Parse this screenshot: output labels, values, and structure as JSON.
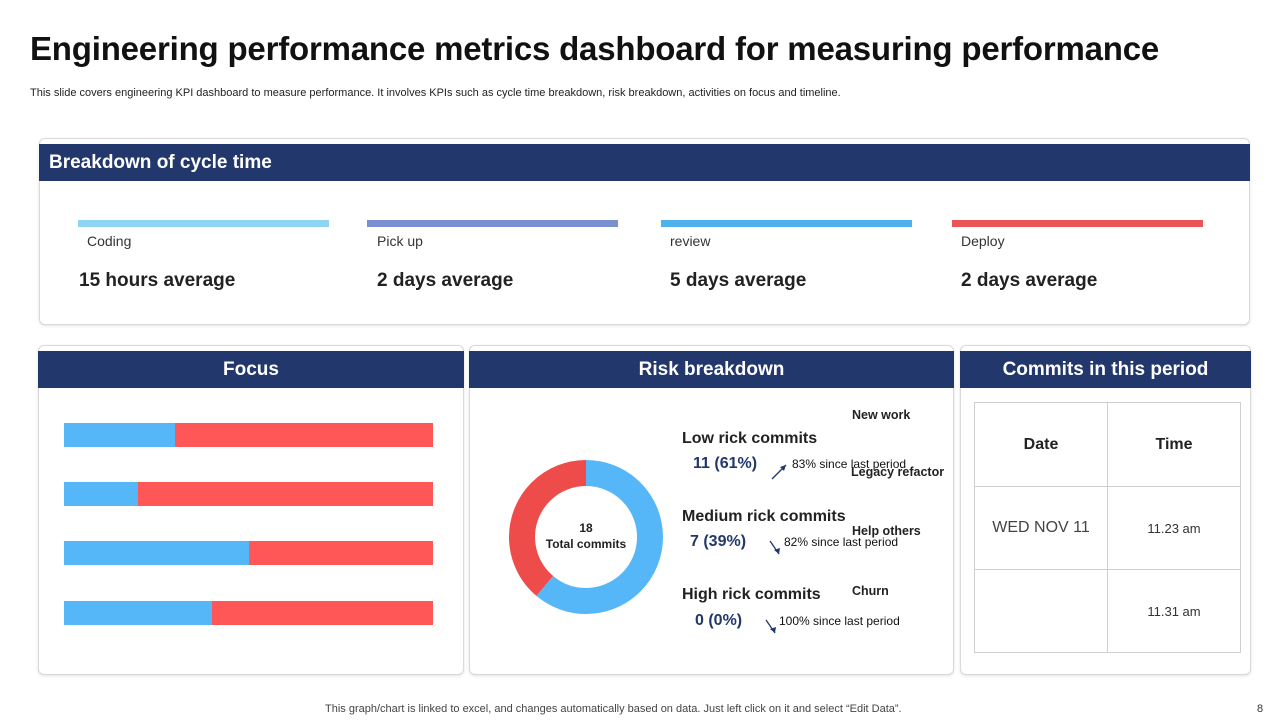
{
  "header": {
    "title": "Engineering performance metrics dashboard for measuring performance",
    "subtitle": "This slide covers engineering KPI dashboard to measure performance. It involves KPIs such as cycle time breakdown, risk breakdown, activities on focus and timeline."
  },
  "cycle": {
    "heading": "Breakdown of cycle time",
    "stages": [
      {
        "label": "Coding",
        "value": "15 hours average",
        "color": "#8fd4f2"
      },
      {
        "label": "Pick up",
        "value": "2 days average",
        "color": "#7b8fd0"
      },
      {
        "label": "review",
        "value": "5 days average",
        "color": "#4fb1ed"
      },
      {
        "label": "Deploy",
        "value": "2 days average",
        "color": "#ea5455"
      }
    ]
  },
  "focus": {
    "heading": "Focus"
  },
  "risk": {
    "heading": "Risk breakdown",
    "donut_total": "18",
    "donut_label": "Total commits",
    "items": [
      {
        "title": "Low rick commits",
        "value": "11 (61%)",
        "since": "83% since last period"
      },
      {
        "title": "Medium rick commits",
        "value": "7 (39%)",
        "since": "82% since last period"
      },
      {
        "title": "High rick commits",
        "value": "0 (0%)",
        "since": "100% since last period"
      }
    ]
  },
  "commits": {
    "heading": "Commits in this period",
    "col_date": "Date",
    "col_time": "Time",
    "rows": [
      {
        "date": "WED NOV 11",
        "time": "11.23 am"
      },
      {
        "date": "",
        "time": "11.31 am"
      }
    ]
  },
  "chart_data": [
    {
      "type": "bar",
      "orientation": "horizontal",
      "stacked": true,
      "title": "Focus",
      "categories": [
        "New work",
        "Legacy refactor",
        "Help others",
        "Churn"
      ],
      "series": [
        {
          "name": "Blue",
          "color": "#55b7f7",
          "values": [
            30,
            20,
            50,
            40
          ]
        },
        {
          "name": "Red",
          "color": "#ff5757",
          "values": [
            70,
            80,
            50,
            60
          ]
        }
      ],
      "xlim": [
        0,
        100
      ]
    },
    {
      "type": "pie",
      "donut": true,
      "title": "Risk breakdown",
      "labels": [
        "Low rick commits",
        "Medium rick commits",
        "High rick commits"
      ],
      "values": [
        11,
        7,
        0
      ],
      "colors": [
        "#55b7f7",
        "#ee4b4b",
        "#22376c"
      ]
    }
  ],
  "footer": {
    "note": "This graph/chart is linked to excel,  and changes automatically based on data. Just left click on it and select “Edit Data”.",
    "page": "8"
  }
}
